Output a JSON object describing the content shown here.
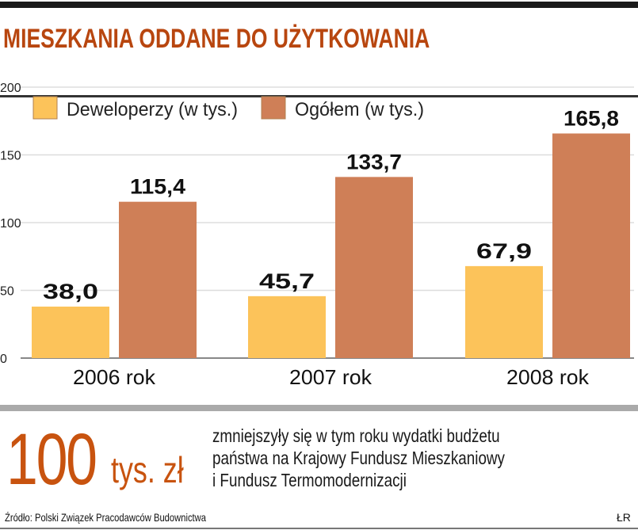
{
  "chart_data": {
    "type": "bar",
    "title": "MIESZKANIA ODDANE DO UŻYTKOWANIA",
    "categories": [
      "2006 rok",
      "2007 rok",
      "2008 rok"
    ],
    "series": [
      {
        "name": "Deweloperzy (w tys.)",
        "values": [
          38.0,
          45.7,
          67.9
        ],
        "labels": [
          "38,0",
          "45,7",
          "67,9"
        ],
        "color": "#fcc35a"
      },
      {
        "name": "Ogółem (w tys.)",
        "values": [
          115.4,
          133.7,
          165.8
        ],
        "labels": [
          "115,4",
          "133,7",
          "165,8"
        ],
        "color": "#cf7f57"
      }
    ],
    "yticks": [
      0,
      50,
      100,
      150,
      200
    ],
    "ylim": [
      0,
      200
    ],
    "grid": true,
    "legend": "top-left"
  },
  "callout": {
    "number": "100",
    "unit": "tys. zł",
    "lines": [
      "zmniejszyły się w tym roku wydatki budżetu",
      "państwa na Krajowy Fundusz Mieszkaniowy",
      "i Fundusz Termomodernizacji"
    ]
  },
  "source": "Źródło: Polski Związek Pracodawców Budownictwa",
  "credit": "ŁR"
}
